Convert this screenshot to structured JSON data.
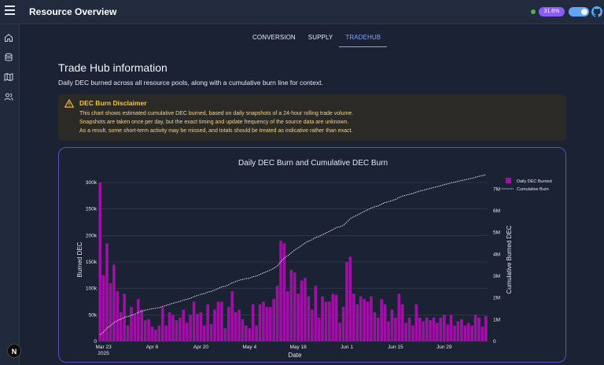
{
  "header": {
    "title": "Resource Overview",
    "percent": "31.6%"
  },
  "sidebar": {
    "icons": [
      "home-icon",
      "database-icon",
      "map-icon",
      "users-icon"
    ],
    "avatar_letter": "N"
  },
  "tabs": [
    {
      "label": "CONVERSION",
      "active": false
    },
    {
      "label": "SUPPLY",
      "active": false
    },
    {
      "label": "TRADEHUB",
      "active": true
    }
  ],
  "section": {
    "title": "Trade Hub information",
    "description": "Daily DEC burned across all resource pools, along with a cumulative burn line for context."
  },
  "disclaimer": {
    "title": "DEC Burn Disclaimer",
    "lines": [
      "This chart shows estimated cumulative DEC burned, based on daily snapshots of a 24-hour rolling trade volume.",
      "Snapshots are taken once per day, but the exact timing and update frequency of the source data are unknown.",
      "As a result, some short-term activity may be missed, and totals should be treated as indicative rather than exact."
    ]
  },
  "colors": {
    "bar": "#a010a6",
    "accent": "#7aa7ff",
    "warning": "#f5c542",
    "card_border": "#5b4fb5"
  },
  "chart_data": {
    "type": "bar",
    "title": "Daily DEC Burn and Cumulative DEC Burn",
    "xlabel": "Date",
    "ylabel": "Burned DEC",
    "y2label": "Cumulative Burned DEC",
    "ylim": [
      0,
      300000
    ],
    "y2lim": [
      0,
      7300000
    ],
    "y_ticks": [
      "0",
      "50k",
      "100k",
      "150k",
      "200k",
      "250k",
      "300k"
    ],
    "y2_ticks": [
      "0",
      "1M",
      "2M",
      "3M",
      "4M",
      "5M",
      "6M",
      "7M"
    ],
    "x_ticks": [
      "Mar 23",
      "Apr 6",
      "Apr 20",
      "May 4",
      "May 18",
      "Jun 1",
      "Jun 15",
      "Jun 29"
    ],
    "x_tick_sub": "2025",
    "start_date": "2025-03-22",
    "end_date": "2025-07-01",
    "legend": {
      "position": "top-right",
      "items": [
        "Daily DEC Burned",
        "Cumulative Burn"
      ]
    },
    "series": [
      {
        "name": "Daily DEC Burned",
        "kind": "bar",
        "values": [
          300000,
          125000,
          185000,
          110000,
          145000,
          95000,
          55000,
          90000,
          30000,
          65000,
          50000,
          80000,
          60000,
          40000,
          42000,
          28000,
          22000,
          30000,
          65000,
          30000,
          55000,
          50000,
          40000,
          45000,
          60000,
          35000,
          50000,
          75000,
          52000,
          55000,
          30000,
          70000,
          33000,
          60000,
          75000,
          75000,
          25000,
          65000,
          95000,
          55000,
          60000,
          42000,
          30000,
          25000,
          70000,
          30000,
          70000,
          75000,
          65000,
          65000,
          80000,
          105000,
          190000,
          185000,
          95000,
          135000,
          130000,
          90000,
          115000,
          120000,
          85000,
          60000,
          105000,
          45000,
          85000,
          75000,
          75000,
          90000,
          88000,
          35000,
          65000,
          150000,
          160000,
          90000,
          70000,
          85000,
          80000,
          75000,
          85000,
          55000,
          45000,
          80000,
          70000,
          38000,
          60000,
          45000,
          90000,
          70000,
          35000,
          45000,
          30000,
          70000,
          45000,
          38000,
          45000,
          40000,
          45000,
          35000,
          45000,
          50000,
          32000,
          50000,
          30000,
          38000,
          42000,
          30000,
          35000,
          30000,
          50000,
          45000,
          28000,
          48000
        ]
      },
      {
        "name": "Cumulative Burn",
        "kind": "line-dotted",
        "values_note": "cumulative of daily values",
        "values": []
      }
    ]
  }
}
